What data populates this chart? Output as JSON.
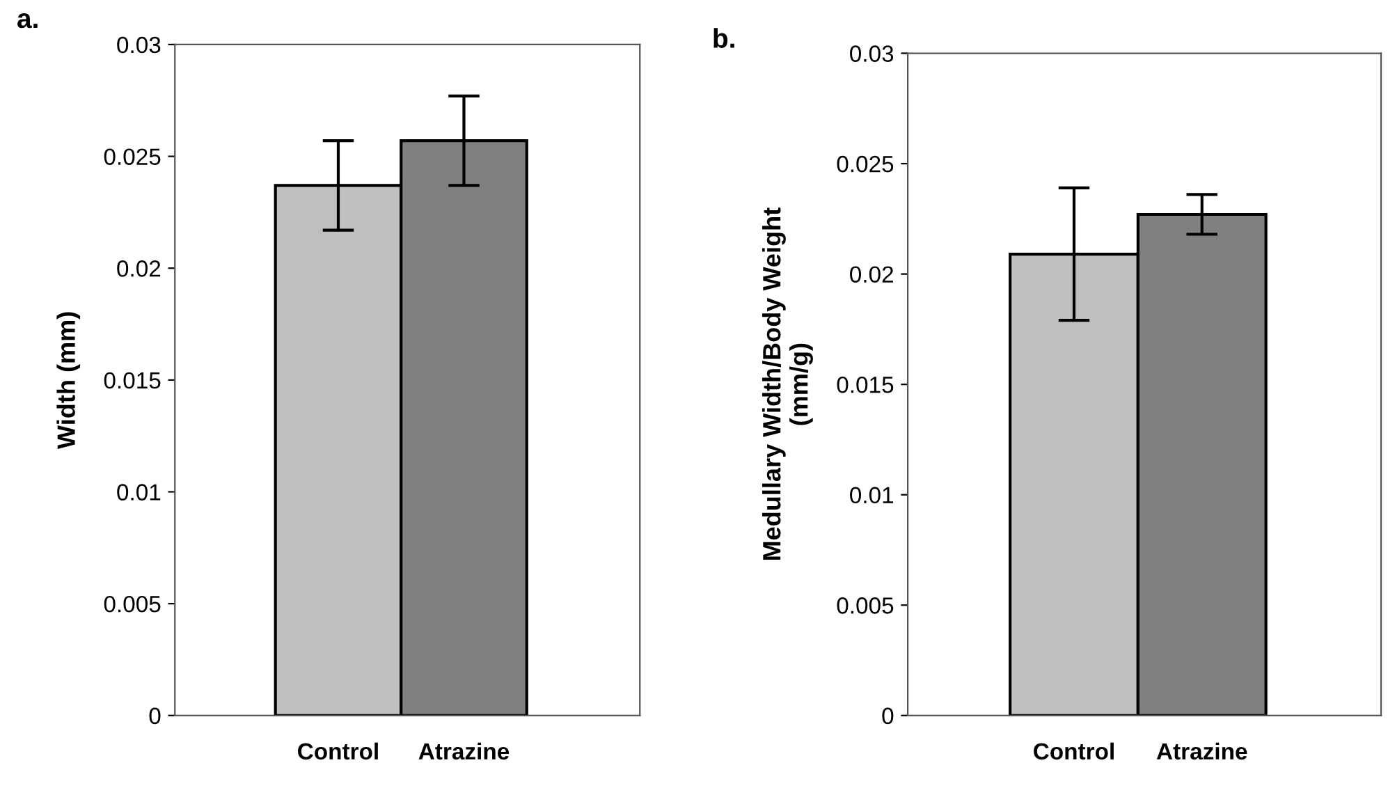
{
  "chart_data": [
    {
      "type": "bar",
      "title": "a.",
      "categories": [
        "Control",
        "Atrazine"
      ],
      "ylabel": "Width (mm)",
      "values": [
        0.0237,
        0.0257
      ],
      "errors": [
        0.002,
        0.002
      ],
      "colors": [
        "#c0c0c0",
        "#808080"
      ],
      "ylim": [
        0,
        0.03
      ],
      "yticks": [
        {
          "value": 0,
          "label": "0"
        },
        0.005,
        0.01,
        0.015,
        0.02,
        0.025,
        0.03
      ],
      "grid": false
    },
    {
      "type": "bar",
      "title": "b.",
      "categories": [
        "Control",
        "Atrazine"
      ],
      "ylabel": "Medullary Width/Body Weight\n(mm/g)",
      "values": [
        0.0209,
        0.0227
      ],
      "errors": [
        0.003,
        0.0009
      ],
      "colors": [
        "#c0c0c0",
        "#808080"
      ],
      "ylim": [
        0,
        0.03
      ],
      "yticks": [
        {
          "value": 0,
          "label": "0"
        },
        0.005,
        0.01,
        0.015,
        0.02,
        0.025,
        0.03
      ],
      "grid": false
    }
  ]
}
